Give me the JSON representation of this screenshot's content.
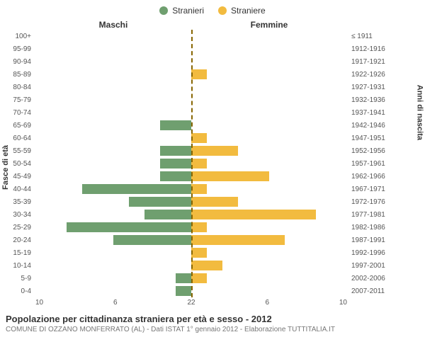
{
  "legend": {
    "male": {
      "label": "Stranieri",
      "color": "#6f9f6f"
    },
    "female": {
      "label": "Straniere",
      "color": "#f2bb3f"
    }
  },
  "headers": {
    "male": "Maschi",
    "female": "Femmine"
  },
  "axis_titles": {
    "left": "Fasce di età",
    "right": "Anni di nascita"
  },
  "footer": {
    "title": "Popolazione per cittadinanza straniera per età e sesso - 2012",
    "sub": "COMUNE DI OZZANO MONFERRATO (AL) - Dati ISTAT 1° gennaio 2012 - Elaborazione TUTTITALIA.IT"
  },
  "chart": {
    "type": "population-pyramid",
    "x_max": 10,
    "x_ticks_left": [
      "10",
      "6",
      "2"
    ],
    "x_ticks_right": [
      "2",
      "6",
      "10"
    ],
    "bar_colors": {
      "male": "#6f9f6f",
      "female": "#f2bb3f"
    },
    "background_color": "#ffffff",
    "divider_color": "#886600",
    "rows": [
      {
        "age": "100+",
        "birth": "≤ 1911",
        "m": 0,
        "f": 0
      },
      {
        "age": "95-99",
        "birth": "1912-1916",
        "m": 0,
        "f": 0
      },
      {
        "age": "90-94",
        "birth": "1917-1921",
        "m": 0,
        "f": 0
      },
      {
        "age": "85-89",
        "birth": "1922-1926",
        "m": 0,
        "f": 1
      },
      {
        "age": "80-84",
        "birth": "1927-1931",
        "m": 0,
        "f": 0
      },
      {
        "age": "75-79",
        "birth": "1932-1936",
        "m": 0,
        "f": 0
      },
      {
        "age": "70-74",
        "birth": "1937-1941",
        "m": 0,
        "f": 0
      },
      {
        "age": "65-69",
        "birth": "1942-1946",
        "m": 2,
        "f": 0
      },
      {
        "age": "60-64",
        "birth": "1947-1951",
        "m": 0,
        "f": 1
      },
      {
        "age": "55-59",
        "birth": "1952-1956",
        "m": 2,
        "f": 3
      },
      {
        "age": "50-54",
        "birth": "1957-1961",
        "m": 2,
        "f": 1
      },
      {
        "age": "45-49",
        "birth": "1962-1966",
        "m": 2,
        "f": 5
      },
      {
        "age": "40-44",
        "birth": "1967-1971",
        "m": 7,
        "f": 1
      },
      {
        "age": "35-39",
        "birth": "1972-1976",
        "m": 4,
        "f": 3
      },
      {
        "age": "30-34",
        "birth": "1977-1981",
        "m": 3,
        "f": 8
      },
      {
        "age": "25-29",
        "birth": "1982-1986",
        "m": 8,
        "f": 1
      },
      {
        "age": "20-24",
        "birth": "1987-1991",
        "m": 5,
        "f": 6
      },
      {
        "age": "15-19",
        "birth": "1992-1996",
        "m": 0,
        "f": 1
      },
      {
        "age": "10-14",
        "birth": "1997-2001",
        "m": 0,
        "f": 2
      },
      {
        "age": "5-9",
        "birth": "2002-2006",
        "m": 1,
        "f": 1
      },
      {
        "age": "0-4",
        "birth": "2007-2011",
        "m": 1,
        "f": 0
      }
    ]
  }
}
